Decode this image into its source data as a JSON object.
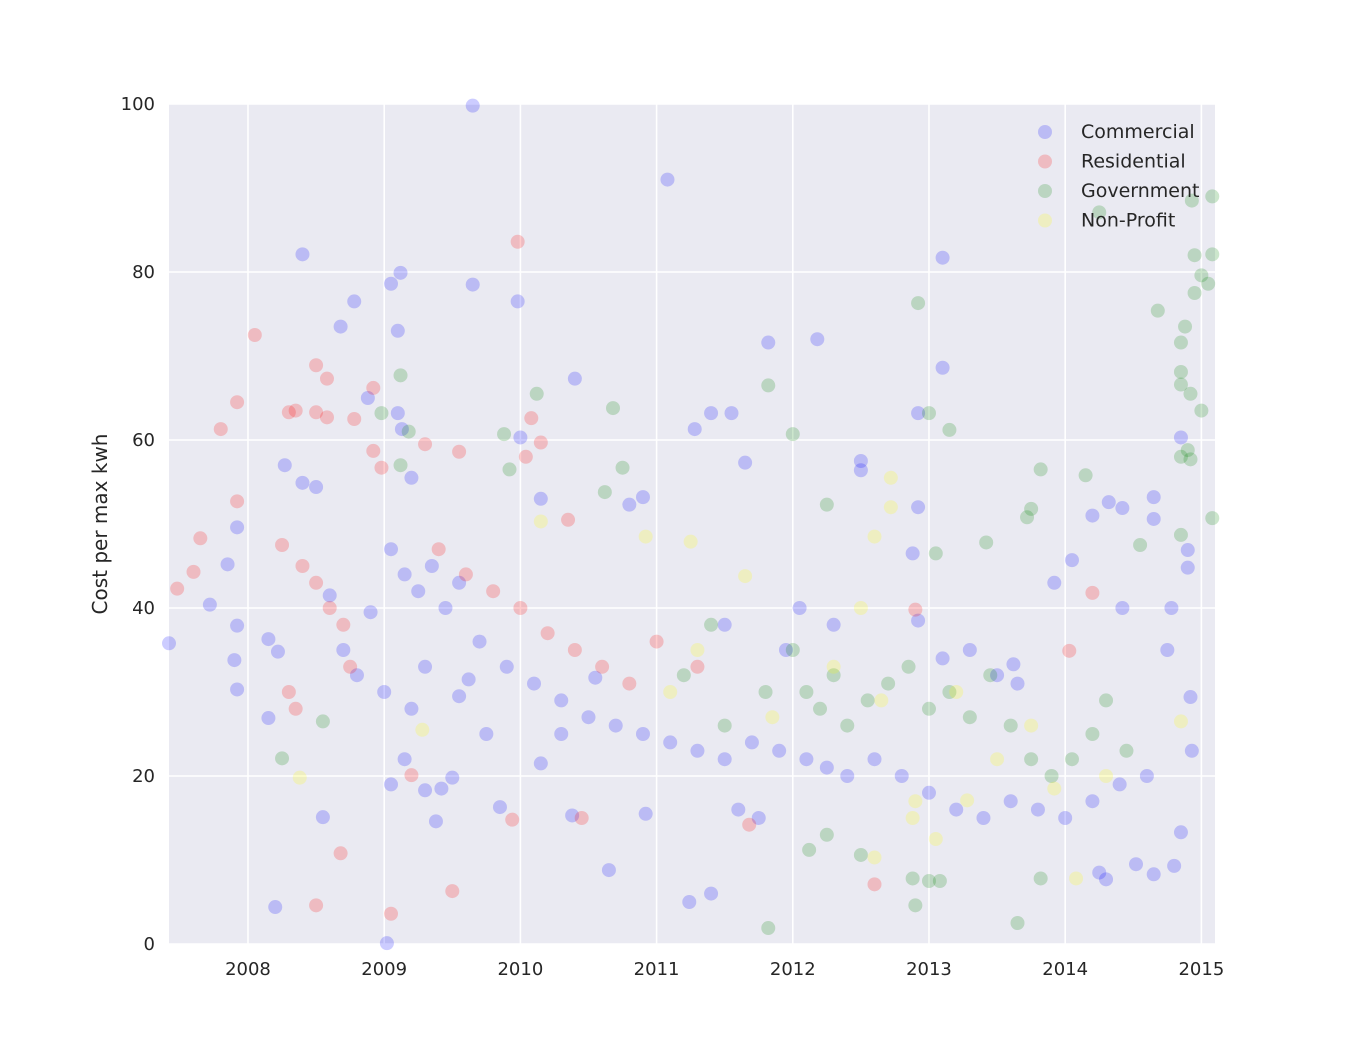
{
  "chart_data": {
    "type": "scatter",
    "title": "",
    "xlabel": "",
    "ylabel": "Cost per max kwh",
    "xlim": [
      2007.42,
      2015.1
    ],
    "ylim": [
      0,
      100
    ],
    "x_ticks": [
      2008,
      2009,
      2010,
      2011,
      2012,
      2013,
      2014,
      2015
    ],
    "x_tick_labels": [
      "2008",
      "2009",
      "2010",
      "2011",
      "2012",
      "2013",
      "2014",
      "2015"
    ],
    "y_ticks": [
      0,
      20,
      40,
      60,
      80,
      100
    ],
    "y_tick_labels": [
      "0",
      "20",
      "40",
      "60",
      "80",
      "100"
    ],
    "grid": true,
    "background": "#eaeaf2",
    "legend_position": "top-right",
    "series": [
      {
        "name": "Commercial",
        "color": "#0000ff",
        "points": [
          [
            2007.42,
            35.8
          ],
          [
            2008.4,
            82.1
          ],
          [
            2008.78,
            76.5
          ],
          [
            2008.68,
            73.5
          ],
          [
            2009.05,
            78.6
          ],
          [
            2009.12,
            79.9
          ],
          [
            2009.1,
            73
          ],
          [
            2008.88,
            65
          ],
          [
            2009.13,
            61.3
          ],
          [
            2009.1,
            63.2
          ],
          [
            2009.2,
            55.5
          ],
          [
            2008.4,
            54.9
          ],
          [
            2008.5,
            54.4
          ],
          [
            2008.27,
            57
          ],
          [
            2007.92,
            49.6
          ],
          [
            2007.85,
            45.2
          ],
          [
            2007.92,
            37.9
          ],
          [
            2007.9,
            33.8
          ],
          [
            2007.92,
            30.3
          ],
          [
            2007.72,
            40.4
          ],
          [
            2008.15,
            36.3
          ],
          [
            2008.22,
            34.8
          ],
          [
            2008.15,
            26.9
          ],
          [
            2008.2,
            4.4
          ],
          [
            2008.55,
            15.1
          ],
          [
            2009.05,
            19
          ],
          [
            2009.15,
            22
          ],
          [
            2009.3,
            18.3
          ],
          [
            2009.38,
            14.6
          ],
          [
            2009.5,
            19.8
          ],
          [
            2009.42,
            18.5
          ],
          [
            2009.55,
            29.5
          ],
          [
            2009.62,
            31.5
          ],
          [
            2009.75,
            25
          ],
          [
            2009.85,
            16.3
          ],
          [
            2009.02,
            0.1
          ],
          [
            2009.65,
            78.5
          ],
          [
            2009.65,
            99.8
          ],
          [
            2009.98,
            76.5
          ],
          [
            2010,
            60.3
          ],
          [
            2010.15,
            53
          ],
          [
            2010.4,
            67.3
          ],
          [
            2010.15,
            21.5
          ],
          [
            2010.3,
            25
          ],
          [
            2010.38,
            15.3
          ],
          [
            2010.55,
            31.7
          ],
          [
            2010.65,
            8.8
          ],
          [
            2010.92,
            15.5
          ],
          [
            2010.8,
            52.3
          ],
          [
            2010.9,
            53.2
          ],
          [
            2011.08,
            91
          ],
          [
            2011.28,
            61.3
          ],
          [
            2011.4,
            63.2
          ],
          [
            2011.55,
            63.2
          ],
          [
            2011.65,
            57.3
          ],
          [
            2011.82,
            71.6
          ],
          [
            2012.18,
            72
          ],
          [
            2011.24,
            5
          ],
          [
            2011.4,
            6
          ],
          [
            2011.6,
            16
          ],
          [
            2011.75,
            15
          ],
          [
            2012.5,
            57.5
          ],
          [
            2012.5,
            56.4
          ],
          [
            2012.88,
            46.5
          ],
          [
            2012.92,
            52
          ],
          [
            2012.92,
            63.2
          ],
          [
            2013.1,
            81.7
          ],
          [
            2013.1,
            68.6
          ],
          [
            2013.62,
            33.3
          ],
          [
            2013.92,
            43
          ],
          [
            2014.05,
            45.7
          ],
          [
            2014.2,
            51
          ],
          [
            2014.32,
            52.6
          ],
          [
            2014.42,
            51.9
          ],
          [
            2014.65,
            53.2
          ],
          [
            2014.65,
            50.6
          ],
          [
            2014.78,
            40
          ],
          [
            2014.85,
            60.3
          ],
          [
            2014.9,
            44.8
          ],
          [
            2014.9,
            46.9
          ],
          [
            2014.92,
            29.4
          ],
          [
            2014.93,
            23
          ],
          [
            2014.85,
            13.3
          ],
          [
            2014.8,
            9.3
          ],
          [
            2014.65,
            8.3
          ],
          [
            2014.52,
            9.5
          ],
          [
            2014.3,
            7.7
          ],
          [
            2014.25,
            8.5
          ],
          [
            2014.42,
            40
          ],
          [
            2012.05,
            40
          ],
          [
            2012.3,
            38
          ],
          [
            2011.95,
            35
          ],
          [
            2011.5,
            38
          ],
          [
            2012.92,
            38.5
          ],
          [
            2013.3,
            35
          ],
          [
            2013.5,
            32
          ],
          [
            2013.65,
            31
          ],
          [
            2013.1,
            34
          ]
        ],
        "cluster_points": [
          [
            2008.6,
            41.5
          ],
          [
            2008.9,
            39.5
          ],
          [
            2009.05,
            47
          ],
          [
            2009.15,
            44
          ],
          [
            2009.25,
            42
          ],
          [
            2009.35,
            45
          ],
          [
            2009.45,
            40
          ],
          [
            2009.55,
            43
          ],
          [
            2008.7,
            35
          ],
          [
            2008.8,
            32
          ],
          [
            2009.0,
            30
          ],
          [
            2009.2,
            28
          ],
          [
            2009.3,
            33
          ],
          [
            2009.7,
            36
          ],
          [
            2009.9,
            33
          ],
          [
            2010.1,
            31
          ],
          [
            2010.3,
            29
          ],
          [
            2010.5,
            27
          ],
          [
            2010.7,
            26
          ],
          [
            2010.9,
            25
          ],
          [
            2011.1,
            24
          ],
          [
            2011.3,
            23
          ],
          [
            2011.5,
            22
          ],
          [
            2011.7,
            24
          ],
          [
            2011.9,
            23
          ],
          [
            2012.1,
            22
          ],
          [
            2012.25,
            21
          ],
          [
            2012.4,
            20
          ],
          [
            2012.6,
            22
          ],
          [
            2012.8,
            20
          ],
          [
            2013.0,
            18
          ],
          [
            2013.2,
            16
          ],
          [
            2013.4,
            15
          ],
          [
            2013.6,
            17
          ],
          [
            2013.8,
            16
          ],
          [
            2014.0,
            15
          ],
          [
            2014.2,
            17
          ],
          [
            2014.4,
            19
          ],
          [
            2014.6,
            20
          ],
          [
            2014.75,
            35
          ]
        ]
      },
      {
        "name": "Residential",
        "color": "#ff0000",
        "points": [
          [
            2007.48,
            42.3
          ],
          [
            2007.6,
            44.3
          ],
          [
            2007.65,
            48.3
          ],
          [
            2007.8,
            61.3
          ],
          [
            2007.92,
            64.5
          ],
          [
            2007.92,
            52.7
          ],
          [
            2008.05,
            72.5
          ],
          [
            2008.3,
            63.3
          ],
          [
            2008.35,
            63.5
          ],
          [
            2008.5,
            68.9
          ],
          [
            2008.58,
            67.3
          ],
          [
            2008.5,
            63.3
          ],
          [
            2008.58,
            62.7
          ],
          [
            2008.78,
            62.5
          ],
          [
            2008.92,
            66.2
          ],
          [
            2008.92,
            58.7
          ],
          [
            2008.98,
            56.7
          ],
          [
            2009.3,
            59.5
          ],
          [
            2009.55,
            58.6
          ],
          [
            2009.98,
            83.6
          ],
          [
            2010.08,
            62.6
          ],
          [
            2010.15,
            59.7
          ],
          [
            2010.04,
            58
          ],
          [
            2010.35,
            50.5
          ],
          [
            2008.5,
            4.6
          ],
          [
            2008.68,
            10.8
          ],
          [
            2009.05,
            3.6
          ],
          [
            2009.2,
            20.1
          ],
          [
            2009.5,
            6.3
          ],
          [
            2009.94,
            14.8
          ],
          [
            2010.45,
            15
          ],
          [
            2011.68,
            14.2
          ],
          [
            2012.6,
            7.1
          ],
          [
            2014.2,
            41.8
          ],
          [
            2012.9,
            39.8
          ],
          [
            2014.03,
            34.9
          ],
          [
            2008.25,
            47.5
          ],
          [
            2008.4,
            45
          ],
          [
            2008.5,
            43
          ],
          [
            2008.6,
            40
          ],
          [
            2008.7,
            38
          ],
          [
            2008.3,
            30
          ],
          [
            2008.35,
            28
          ],
          [
            2008.75,
            33
          ],
          [
            2009.4,
            47
          ],
          [
            2009.6,
            44
          ],
          [
            2009.8,
            42
          ],
          [
            2010.0,
            40
          ],
          [
            2010.2,
            37
          ],
          [
            2010.4,
            35
          ],
          [
            2010.6,
            33
          ],
          [
            2010.8,
            31
          ],
          [
            2011.0,
            36
          ],
          [
            2011.3,
            33
          ]
        ]
      },
      {
        "name": "Government",
        "color": "#008000",
        "points": [
          [
            2008.25,
            22.1
          ],
          [
            2008.55,
            26.5
          ],
          [
            2008.98,
            63.2
          ],
          [
            2009.12,
            67.7
          ],
          [
            2009.18,
            61
          ],
          [
            2009.12,
            57
          ],
          [
            2009.88,
            60.7
          ],
          [
            2009.92,
            56.5
          ],
          [
            2010.12,
            65.5
          ],
          [
            2010.68,
            63.8
          ],
          [
            2010.75,
            56.7
          ],
          [
            2010.62,
            53.8
          ],
          [
            2011.82,
            66.5
          ],
          [
            2012,
            60.7
          ],
          [
            2012.25,
            52.3
          ],
          [
            2012.92,
            76.3
          ],
          [
            2013,
            63.2
          ],
          [
            2013.05,
            46.5
          ],
          [
            2013.15,
            61.2
          ],
          [
            2013.42,
            47.8
          ],
          [
            2013.82,
            56.5
          ],
          [
            2013.72,
            50.8
          ],
          [
            2013.75,
            51.8
          ],
          [
            2014.15,
            55.8
          ],
          [
            2014.25,
            87.1
          ],
          [
            2014.55,
            47.5
          ],
          [
            2014.68,
            75.4
          ],
          [
            2014.85,
            71.6
          ],
          [
            2014.85,
            68.1
          ],
          [
            2014.85,
            66.6
          ],
          [
            2014.88,
            73.5
          ],
          [
            2014.92,
            65.5
          ],
          [
            2014.93,
            88.5
          ],
          [
            2014.95,
            77.5
          ],
          [
            2014.95,
            82
          ],
          [
            2015,
            79.6
          ],
          [
            2015,
            63.5
          ],
          [
            2015.05,
            78.6
          ],
          [
            2015.08,
            89
          ],
          [
            2015.08,
            82.1
          ],
          [
            2015.08,
            50.7
          ],
          [
            2014.85,
            58
          ],
          [
            2014.9,
            58.8
          ],
          [
            2014.92,
            57.7
          ],
          [
            2014.85,
            48.7
          ],
          [
            2011.82,
            1.9
          ],
          [
            2012.9,
            4.6
          ],
          [
            2012.88,
            7.8
          ],
          [
            2013,
            7.5
          ],
          [
            2013.08,
            7.5
          ],
          [
            2013.65,
            2.5
          ],
          [
            2013.82,
            7.8
          ],
          [
            2012.12,
            11.2
          ],
          [
            2012.5,
            10.6
          ],
          [
            2012.1,
            30
          ],
          [
            2012.2,
            28
          ],
          [
            2012.3,
            32
          ],
          [
            2012.4,
            26
          ],
          [
            2012.55,
            29
          ],
          [
            2012.7,
            31
          ],
          [
            2012.85,
            33
          ],
          [
            2013.0,
            28
          ],
          [
            2013.15,
            30
          ],
          [
            2013.3,
            27
          ],
          [
            2013.45,
            32
          ],
          [
            2013.6,
            26
          ],
          [
            2013.75,
            22
          ],
          [
            2013.9,
            20
          ],
          [
            2014.05,
            22
          ],
          [
            2014.2,
            25
          ],
          [
            2014.3,
            29
          ],
          [
            2014.45,
            23
          ],
          [
            2012.25,
            13
          ],
          [
            2012.0,
            35
          ],
          [
            2011.8,
            30
          ],
          [
            2011.5,
            26
          ],
          [
            2011.2,
            32
          ],
          [
            2011.4,
            38
          ]
        ]
      },
      {
        "name": "Non-Profit",
        "color": "#ffff00",
        "points": [
          [
            2008.38,
            19.8
          ],
          [
            2009.28,
            25.5
          ],
          [
            2010.15,
            50.3
          ],
          [
            2010.92,
            48.5
          ],
          [
            2011.25,
            47.9
          ],
          [
            2011.65,
            43.8
          ],
          [
            2012.6,
            48.5
          ],
          [
            2012.72,
            55.5
          ],
          [
            2012.72,
            52
          ],
          [
            2012.5,
            40
          ],
          [
            2012.6,
            10.3
          ],
          [
            2012.88,
            15
          ],
          [
            2013.05,
            12.5
          ],
          [
            2013.28,
            17.1
          ],
          [
            2013.92,
            18.5
          ],
          [
            2014.08,
            7.8
          ],
          [
            2014.85,
            26.5
          ],
          [
            2011.1,
            30
          ],
          [
            2011.3,
            35
          ],
          [
            2012.3,
            33
          ],
          [
            2012.65,
            29
          ],
          [
            2013.5,
            22
          ],
          [
            2013.75,
            26
          ],
          [
            2012.9,
            17
          ],
          [
            2014.3,
            20
          ],
          [
            2011.85,
            27
          ],
          [
            2013.2,
            30
          ]
        ]
      }
    ]
  }
}
